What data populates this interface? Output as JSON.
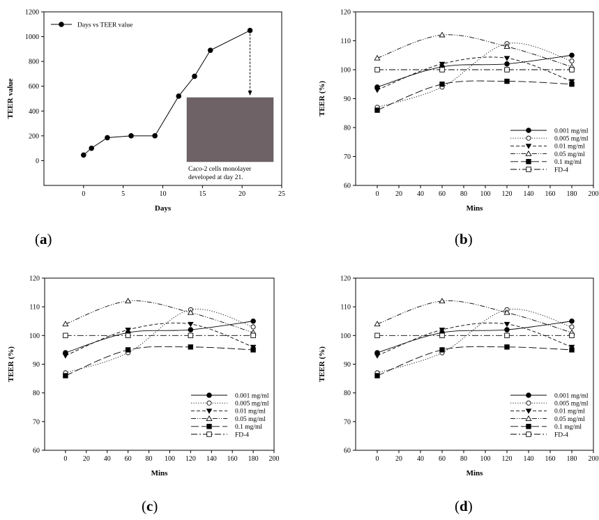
{
  "chart_data": [
    {
      "type": "line",
      "panel": "(a)",
      "panel_letter": "a",
      "xlabel": "Days",
      "ylabel": "TEER value",
      "xlim": [
        -5,
        25
      ],
      "ylim": [
        -200,
        1200
      ],
      "xticks": [
        0,
        5,
        10,
        15,
        20,
        25
      ],
      "yticks": [
        0,
        200,
        400,
        600,
        800,
        1000,
        1200
      ],
      "grid": false,
      "legend_position": "top-left",
      "series": [
        {
          "name": "Days vs TEER value",
          "marker": "filled-circle",
          "x": [
            0,
            1,
            3,
            6,
            9,
            12,
            14,
            16,
            21
          ],
          "y": [
            45,
            100,
            185,
            200,
            200,
            520,
            680,
            890,
            1050
          ]
        }
      ],
      "inset": {
        "caption_line1": "Caco-2 cells monolayer",
        "caption_line2": "developed at day 21.",
        "color": "#6f6266"
      }
    },
    {
      "type": "line",
      "panel": "(b)",
      "panel_letter": "b",
      "xlabel": "Mins",
      "ylabel": "TEER (%)",
      "xlim": [
        -20,
        200
      ],
      "ylim": [
        60,
        120
      ],
      "xticks": [
        0,
        20,
        40,
        60,
        80,
        100,
        120,
        140,
        160,
        180,
        200
      ],
      "yticks": [
        60,
        70,
        80,
        90,
        100,
        110,
        120
      ],
      "grid": false,
      "legend_position": "bottom-right",
      "x": [
        0,
        60,
        120,
        180
      ],
      "series": [
        {
          "name": "0.001 mg/ml",
          "marker": "filled-circle",
          "dash": "solid",
          "values": [
            94,
            101,
            102,
            105
          ]
        },
        {
          "name": "0.005 mg/ml",
          "marker": "open-circle",
          "dash": "dotted",
          "values": [
            87,
            94,
            109,
            103
          ]
        },
        {
          "name": "0.01 mg/ml",
          "marker": "filled-triangle",
          "dash": "dashed",
          "values": [
            93,
            102,
            104,
            96
          ]
        },
        {
          "name": "0.05 mg/ml",
          "marker": "open-triangle",
          "dash": "dashdotdot",
          "values": [
            104,
            112,
            108,
            101
          ]
        },
        {
          "name": "0.1 mg/ml",
          "marker": "filled-square",
          "dash": "longdash",
          "values": [
            86,
            95,
            96,
            95
          ]
        },
        {
          "name": "FD-4",
          "marker": "open-square",
          "dash": "dashdot",
          "values": [
            100,
            100,
            100,
            100
          ]
        }
      ]
    },
    {
      "type": "line",
      "panel": "(c)",
      "panel_letter": "c",
      "xlabel": "Mins",
      "ylabel": "TEER (%)",
      "xlim": [
        -20,
        200
      ],
      "ylim": [
        60,
        120
      ],
      "xticks": [
        0,
        20,
        40,
        60,
        80,
        100,
        120,
        140,
        160,
        180,
        200
      ],
      "yticks": [
        60,
        70,
        80,
        90,
        100,
        110,
        120
      ],
      "grid": false,
      "legend_position": "bottom-right",
      "x": [
        0,
        60,
        120,
        180
      ],
      "series": [
        {
          "name": "0.001 mg/ml",
          "marker": "filled-circle",
          "dash": "solid",
          "values": [
            94,
            101,
            102,
            105
          ]
        },
        {
          "name": "0.005 mg/ml",
          "marker": "open-circle",
          "dash": "dotted",
          "values": [
            87,
            94,
            109,
            103
          ]
        },
        {
          "name": "0.01 mg/ml",
          "marker": "filled-triangle",
          "dash": "dashed",
          "values": [
            93,
            102,
            104,
            96
          ]
        },
        {
          "name": "0.05 mg/ml",
          "marker": "open-triangle",
          "dash": "dashdotdot",
          "values": [
            104,
            112,
            108,
            101
          ]
        },
        {
          "name": "0.1 mg/ml",
          "marker": "filled-square",
          "dash": "longdash",
          "values": [
            86,
            95,
            96,
            95
          ]
        },
        {
          "name": "FD-4",
          "marker": "open-square",
          "dash": "dashdot",
          "values": [
            100,
            100,
            100,
            100
          ]
        }
      ]
    },
    {
      "type": "line",
      "panel": "(d)",
      "panel_letter": "d",
      "xlabel": "Mins",
      "ylabel": "TEER (%)",
      "xlim": [
        -20,
        200
      ],
      "ylim": [
        60,
        120
      ],
      "xticks": [
        0,
        20,
        40,
        60,
        80,
        100,
        120,
        140,
        160,
        180,
        200
      ],
      "yticks": [
        60,
        70,
        80,
        90,
        100,
        110,
        120
      ],
      "grid": false,
      "legend_position": "bottom-right",
      "x": [
        0,
        60,
        120,
        180
      ],
      "series": [
        {
          "name": "0.001 mg/ml",
          "marker": "filled-circle",
          "dash": "solid",
          "values": [
            94,
            101,
            102,
            105
          ]
        },
        {
          "name": "0.005 mg/ml",
          "marker": "open-circle",
          "dash": "dotted",
          "values": [
            87,
            94,
            109,
            103
          ]
        },
        {
          "name": "0.01 mg/ml",
          "marker": "filled-triangle",
          "dash": "dashed",
          "values": [
            93,
            102,
            104,
            96
          ]
        },
        {
          "name": "0.05 mg/ml",
          "marker": "open-triangle",
          "dash": "dashdotdot",
          "values": [
            104,
            112,
            108,
            101
          ]
        },
        {
          "name": "0.1 mg/ml",
          "marker": "filled-square",
          "dash": "longdash",
          "values": [
            86,
            95,
            96,
            95
          ]
        },
        {
          "name": "FD-4",
          "marker": "open-square",
          "dash": "dashdot",
          "values": [
            100,
            100,
            100,
            100
          ]
        }
      ]
    }
  ]
}
